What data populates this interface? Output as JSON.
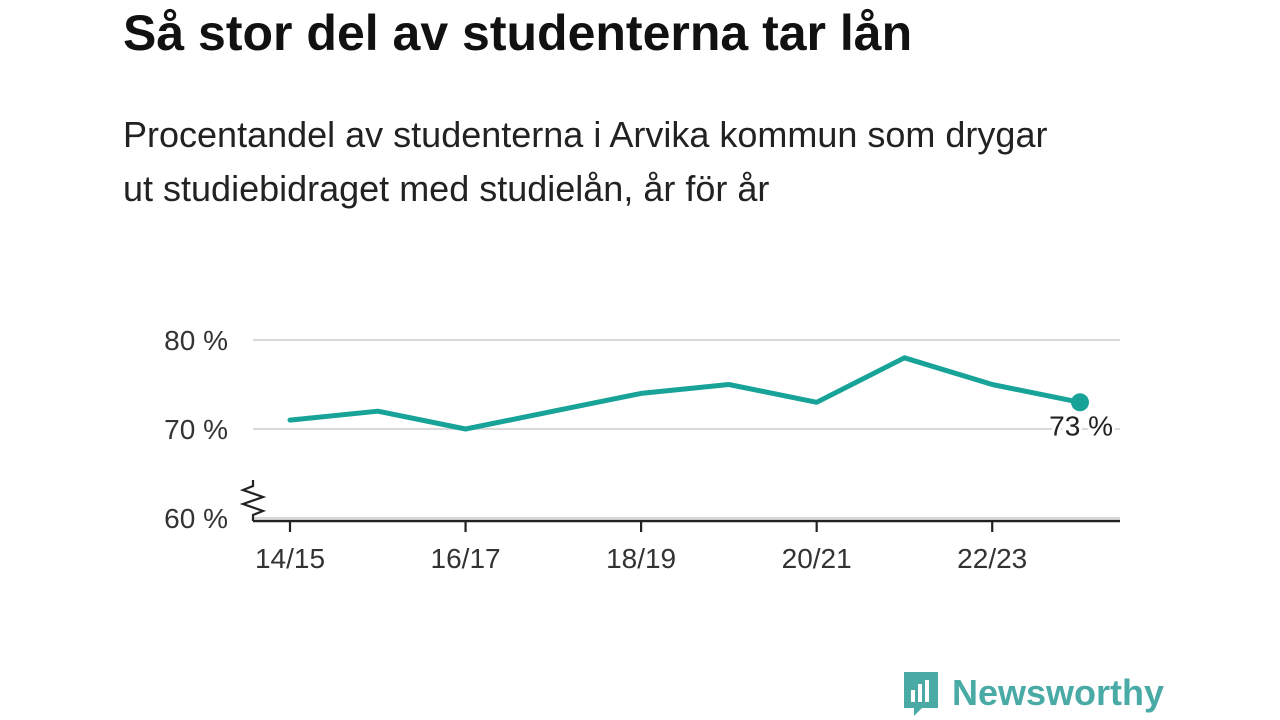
{
  "title": "Så stor del av studenterna tar lån",
  "subtitle": "Procentandel av studenterna i Arvika kommun som drygar ut studiebidraget med studielån, år för år",
  "brand": {
    "name": "Newsworthy",
    "icon": "newsworthy-logo-icon",
    "color": "#4aaaa5"
  },
  "chart_data": {
    "type": "line",
    "x": [
      "14/15",
      "15/16",
      "16/17",
      "17/18",
      "18/19",
      "19/20",
      "20/21",
      "21/22",
      "22/23",
      "23/24"
    ],
    "series": [
      {
        "values": [
          71,
          72,
          70,
          72,
          74,
          75,
          73,
          78,
          75,
          73
        ]
      }
    ],
    "xticks": [
      "14/15",
      "16/17",
      "18/19",
      "20/21",
      "22/23"
    ],
    "yticks": [
      60,
      70,
      80
    ],
    "ytick_labels": [
      "60 %",
      "70 %",
      "80 %"
    ],
    "ylim": [
      60,
      80
    ],
    "axis_break": true,
    "end_label": "73 %",
    "line_color": "#17a398",
    "grid": true
  }
}
